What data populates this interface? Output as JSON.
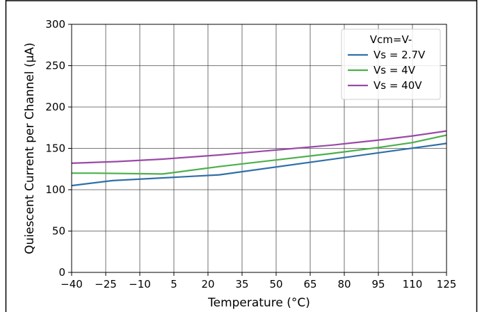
{
  "chart_data": {
    "type": "line",
    "title": "",
    "xlabel": "Temperature (°C)",
    "ylabel": "Quiescent Current per Channel (µA)",
    "xlim": [
      -40,
      125
    ],
    "ylim": [
      0,
      300
    ],
    "xticks": [
      -40,
      -25,
      -10,
      5,
      20,
      35,
      50,
      65,
      80,
      95,
      110,
      125
    ],
    "yticks": [
      0,
      50,
      100,
      150,
      200,
      250,
      300
    ],
    "xtick_labels": [
      "−40",
      "−25",
      "−10",
      "5",
      "20",
      "35",
      "50",
      "65",
      "80",
      "95",
      "110",
      "125"
    ],
    "ytick_labels": [
      "0",
      "50",
      "100",
      "150",
      "200",
      "250",
      "300"
    ],
    "grid": true,
    "legend": {
      "title": "Vcm=V-",
      "position": "top-right"
    },
    "series": [
      {
        "name": "Vs = 2.7V",
        "color": "#2f6fa8",
        "points": [
          [
            -40,
            105
          ],
          [
            -22,
            111
          ],
          [
            25,
            118
          ],
          [
            125,
            156
          ]
        ]
      },
      {
        "name": "Vs = 4V",
        "color": "#4ab04a",
        "points": [
          [
            -40,
            120
          ],
          [
            -30,
            120
          ],
          [
            0,
            119
          ],
          [
            25,
            128
          ],
          [
            50,
            136
          ],
          [
            75,
            144
          ],
          [
            95,
            151
          ],
          [
            110,
            157
          ],
          [
            125,
            166
          ]
        ]
      },
      {
        "name": "Vs = 40V",
        "color": "#9a4aa6",
        "points": [
          [
            -40,
            132
          ],
          [
            -20,
            134
          ],
          [
            0,
            137
          ],
          [
            25,
            142
          ],
          [
            50,
            148
          ],
          [
            75,
            154
          ],
          [
            95,
            160
          ],
          [
            110,
            165
          ],
          [
            125,
            171
          ]
        ]
      }
    ]
  }
}
